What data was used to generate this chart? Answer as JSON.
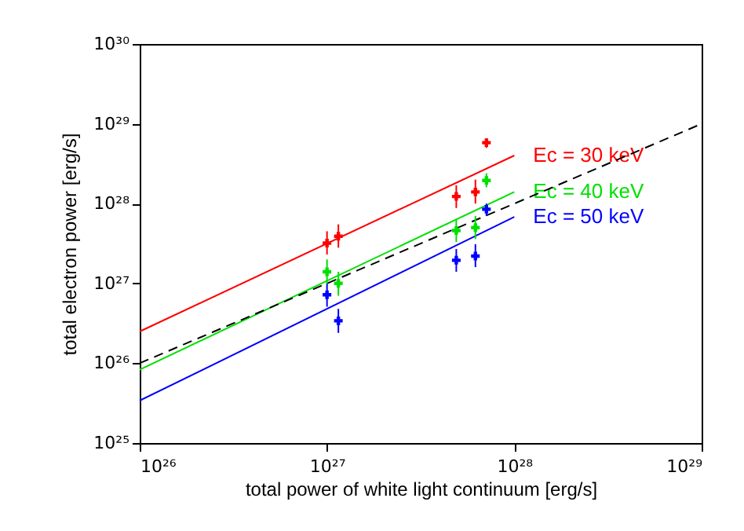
{
  "chart_data": {
    "type": "scatter",
    "xlabel": "total power of white light continuum [erg/s]",
    "ylabel": "total electron power [erg/s]",
    "log": "xy",
    "xlim": [
      1e+26,
      1e+29
    ],
    "ylim": [
      1e+25,
      1e+30
    ],
    "xticks": [
      {
        "value": 1e+26,
        "label": "10²⁶"
      },
      {
        "value": 1e+27,
        "label": "10²⁷"
      },
      {
        "value": 1e+28,
        "label": "10²⁸"
      },
      {
        "value": 1e+29,
        "label": "10²⁹"
      }
    ],
    "yticks": [
      {
        "value": 1e+25,
        "label": "10²⁵"
      },
      {
        "value": 1e+26,
        "label": "10²⁶"
      },
      {
        "value": 1e+27,
        "label": "10²⁷"
      },
      {
        "value": 1e+28,
        "label": "10²⁸"
      },
      {
        "value": 1e+29,
        "label": "10²⁹"
      },
      {
        "value": 1e+30,
        "label": "10³⁰"
      }
    ],
    "x": [
      1e+27,
      1.15e+27,
      4.9e+27,
      6.2e+27,
      7.1e+27
    ],
    "series": [
      {
        "type": "line",
        "name": "Ec = 30 keV",
        "color": "#ff0000",
        "x": [
          1e+26,
          1e+28
        ],
        "values": [
          2.5e+26,
          4e+28
        ]
      },
      {
        "type": "line",
        "name": "Ec = 40 keV",
        "color": "#00e000",
        "x": [
          1e+26,
          1e+28
        ],
        "values": [
          8.3e+25,
          1.4e+28
        ]
      },
      {
        "type": "line",
        "name": "Ec = 50 keV",
        "color": "#0000ff",
        "x": [
          1e+26,
          1e+28
        ],
        "values": [
          3.4e+25,
          6.8e+27
        ]
      },
      {
        "type": "line",
        "color": "#000000",
        "line_style": "dashed",
        "x": [
          1e+26,
          1e+29
        ],
        "values": [
          1e+26,
          1e+29
        ]
      },
      {
        "marker": "cross",
        "color": "#ff0000",
        "values": [
          3.2e+27,
          3.9e+27,
          1.23e+28,
          1.4e+28,
          5.8e+28
        ],
        "errors": [
          [
            2.3e+27,
            4.5e+27
          ],
          [
            2.8e+27,
            5.5e+27
          ],
          [
            8.8e+27,
            1.7e+28
          ],
          [
            1e+28,
            2e+28
          ],
          [
            5e+28,
            6.6e+28
          ]
        ],
        "xerrors": [
          [
            9.5e+26,
            1.05e+27
          ],
          [
            1.1e+27,
            1.2e+27
          ],
          [
            4.65e+27,
            5.15e+27
          ],
          [
            5.9e+27,
            6.5e+27
          ],
          [
            6.75e+27,
            7.45e+27
          ]
        ]
      },
      {
        "marker": "cross",
        "color": "#00e000",
        "values": [
          1.4e+27,
          1e+27,
          4.6e+27,
          5e+27,
          1.95e+28
        ],
        "errors": [
          [
            1e+27,
            2e+27
          ],
          [
            7e+26,
            1.4e+27
          ],
          [
            3.3e+27,
            6.4e+27
          ],
          [
            3.6e+27,
            7e+27
          ],
          [
            1.6e+28,
            2.4e+28
          ]
        ],
        "xerrors": [
          [
            9.5e+26,
            1.05e+27
          ],
          [
            1.1e+27,
            1.2e+27
          ],
          [
            4.65e+27,
            5.15e+27
          ],
          [
            5.9e+27,
            6.5e+27
          ],
          [
            6.75e+27,
            7.45e+27
          ]
        ]
      },
      {
        "marker": "cross",
        "color": "#0000ff",
        "values": [
          7.2e+26,
          3.4e+26,
          1.95e+27,
          2.2e+27,
          8.5e+27
        ],
        "errors": [
          [
            5.1e+26,
            1e+27
          ],
          [
            2.4e+26,
            4.8e+26
          ],
          [
            1.4e+27,
            2.7e+27
          ],
          [
            1.6e+27,
            3.1e+27
          ],
          [
            7e+27,
            1e+28
          ]
        ],
        "xerrors": [
          [
            9.5e+26,
            1.05e+27
          ],
          [
            1.1e+27,
            1.2e+27
          ],
          [
            4.65e+27,
            5.15e+27
          ],
          [
            5.9e+27,
            6.5e+27
          ],
          [
            6.75e+27,
            7.45e+27
          ]
        ]
      }
    ]
  }
}
